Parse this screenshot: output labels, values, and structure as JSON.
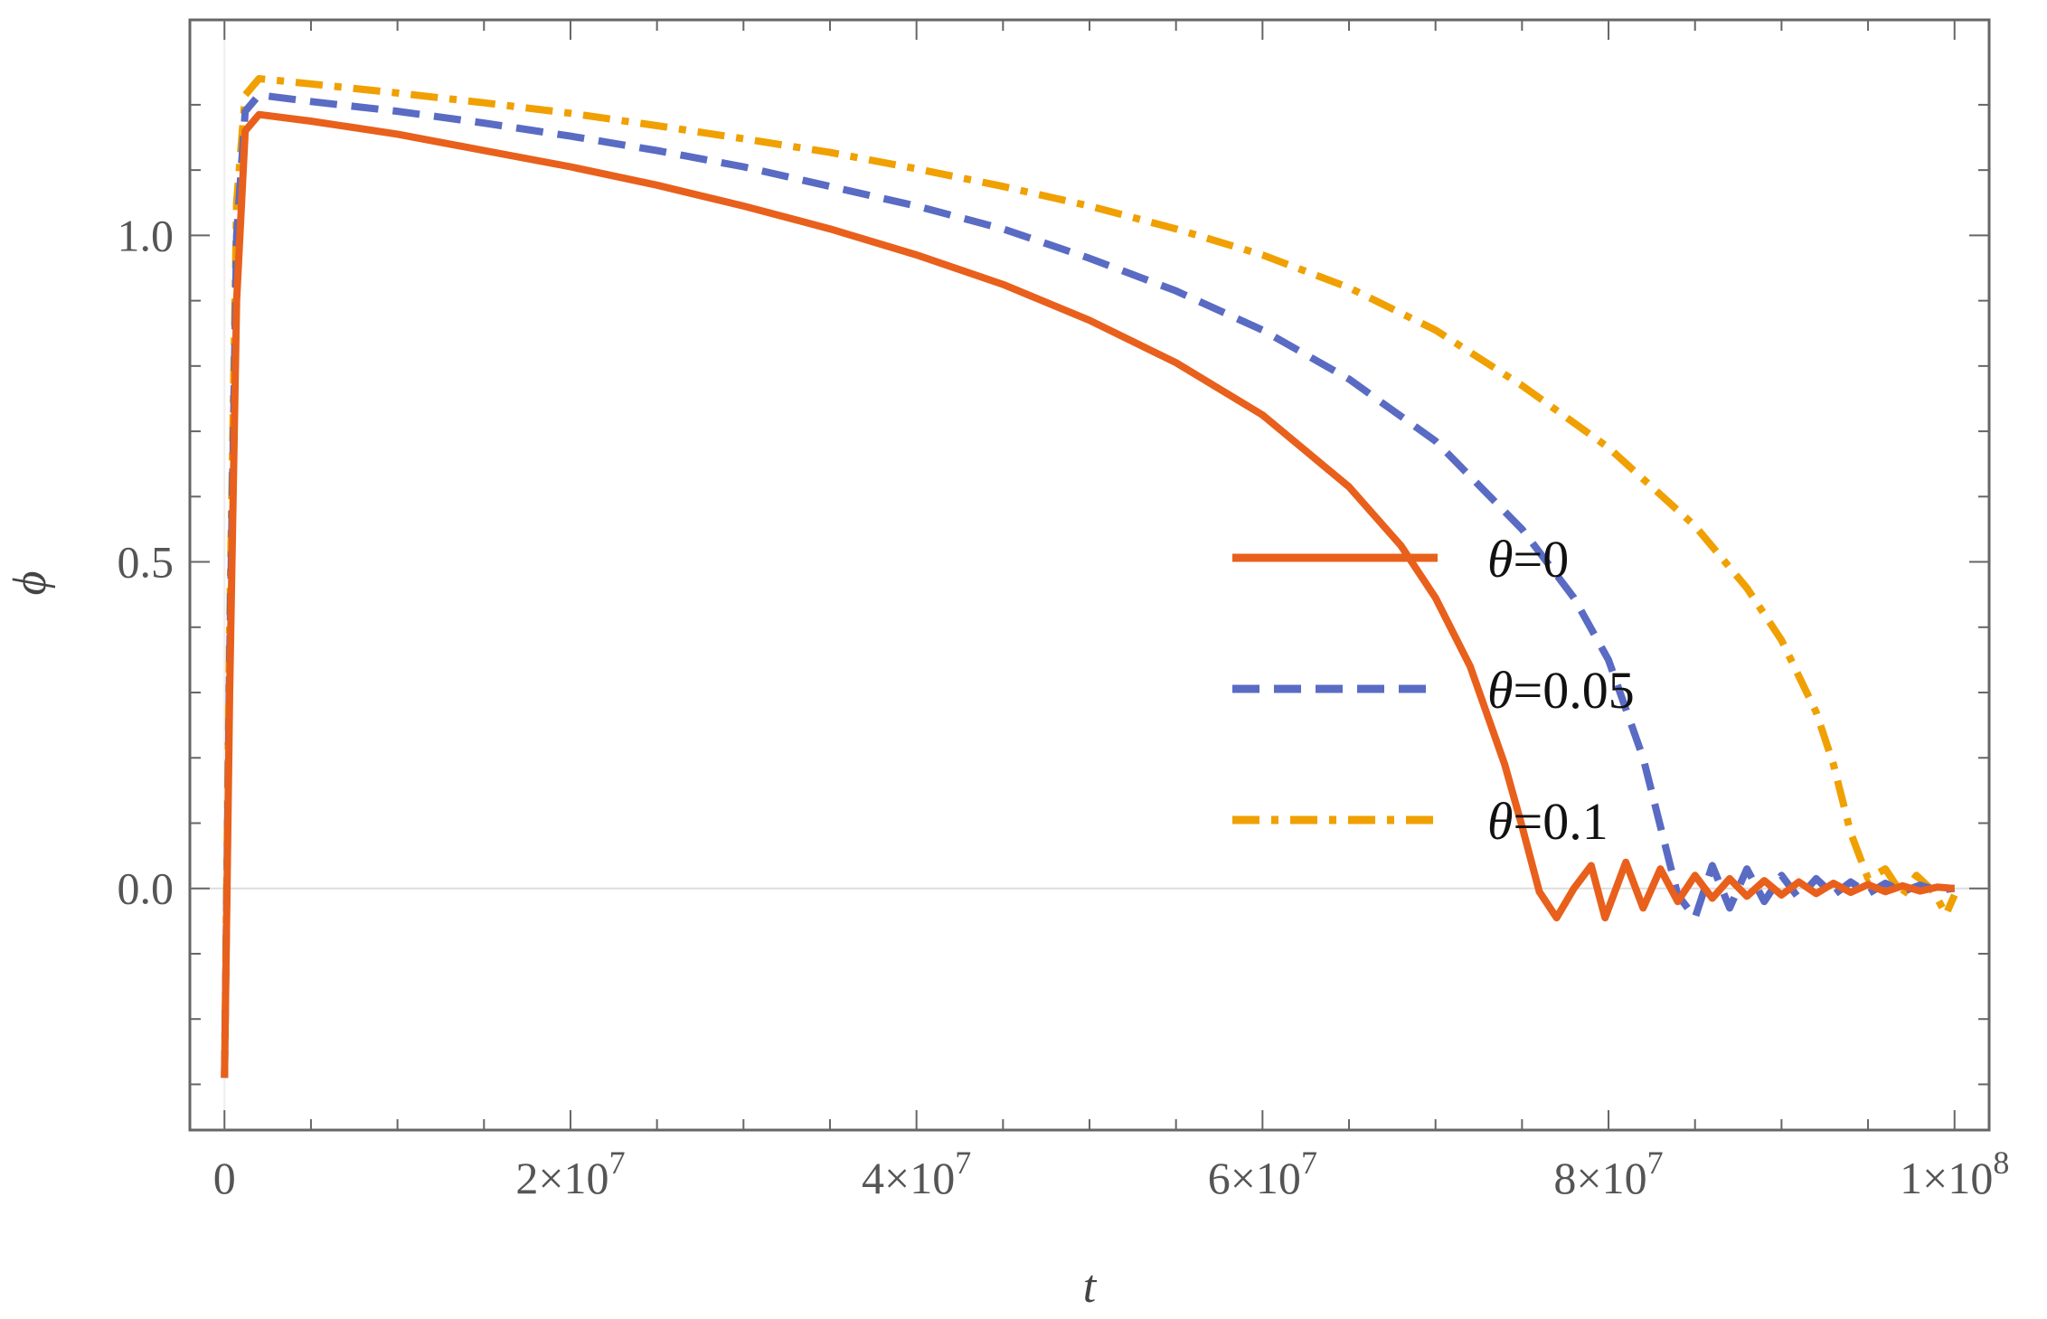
{
  "chart_data": {
    "type": "line",
    "title": "",
    "xlabel": "t",
    "ylabel": "ϕ",
    "xlim": [
      -2000000,
      102000000
    ],
    "ylim": [
      -0.37,
      1.33
    ],
    "grid": false,
    "legend_position": "center-right",
    "x_ticks": [
      {
        "value": 0,
        "label": "0",
        "exp": ""
      },
      {
        "value": 20000000,
        "label": "2×10",
        "exp": "7"
      },
      {
        "value": 40000000,
        "label": "4×10",
        "exp": "7"
      },
      {
        "value": 60000000,
        "label": "6×10",
        "exp": "7"
      },
      {
        "value": 80000000,
        "label": "8×10",
        "exp": "7"
      },
      {
        "value": 100000000,
        "label": "1×10",
        "exp": "8"
      }
    ],
    "y_ticks": [
      {
        "value": 0.0,
        "label": "0.0"
      },
      {
        "value": 0.5,
        "label": "0.5"
      },
      {
        "value": 1.0,
        "label": "1.0"
      }
    ],
    "series": [
      {
        "name": "θ=0",
        "color": "#e8601c",
        "style": "solid",
        "x": [
          0,
          300000,
          700000,
          1200000,
          2000000,
          5000000,
          10000000,
          15000000,
          20000000,
          25000000,
          30000000,
          35000000,
          40000000,
          45000000,
          50000000,
          55000000,
          60000000,
          65000000,
          68000000,
          70000000,
          72000000,
          74000000,
          75000000,
          76000000,
          77000000,
          78000000,
          79000000,
          79800000,
          81000000,
          82000000,
          83000000,
          84000000,
          85000000,
          86000000,
          87000000,
          88000000,
          89000000,
          90000000,
          91000000,
          92000000,
          93000000,
          94000000,
          95000000,
          96000000,
          97000000,
          98000000,
          99000000,
          100000000
        ],
        "y": [
          -0.29,
          0.3,
          0.9,
          1.16,
          1.185,
          1.175,
          1.155,
          1.13,
          1.105,
          1.077,
          1.045,
          1.01,
          0.97,
          0.925,
          0.87,
          0.805,
          0.725,
          0.615,
          0.525,
          0.445,
          0.34,
          0.19,
          0.095,
          -0.005,
          -0.045,
          0.0,
          0.035,
          -0.045,
          0.04,
          -0.03,
          0.03,
          -0.02,
          0.02,
          -0.015,
          0.015,
          -0.012,
          0.012,
          -0.01,
          0.01,
          -0.008,
          0.008,
          -0.006,
          0.006,
          -0.005,
          0.004,
          -0.004,
          0.002,
          0.0
        ]
      },
      {
        "name": "θ=0.05",
        "color": "#5a6bc4",
        "style": "dashed",
        "x": [
          0,
          300000,
          700000,
          1200000,
          2000000,
          5000000,
          10000000,
          15000000,
          20000000,
          25000000,
          30000000,
          35000000,
          40000000,
          45000000,
          50000000,
          55000000,
          60000000,
          65000000,
          70000000,
          75000000,
          78000000,
          80000000,
          82000000,
          84000000,
          85000000,
          86000000,
          87000000,
          88000000,
          89000000,
          90000000,
          91000000,
          92000000,
          93000000,
          94000000,
          95000000,
          96000000,
          97000000,
          98000000,
          99000000,
          100000000
        ],
        "y": [
          -0.29,
          0.35,
          1.0,
          1.19,
          1.215,
          1.205,
          1.19,
          1.172,
          1.152,
          1.13,
          1.105,
          1.075,
          1.045,
          1.01,
          0.965,
          0.915,
          0.855,
          0.78,
          0.685,
          0.55,
          0.445,
          0.35,
          0.2,
          -0.01,
          -0.045,
          0.035,
          -0.03,
          0.03,
          -0.02,
          0.02,
          -0.015,
          0.015,
          -0.01,
          0.01,
          -0.008,
          0.008,
          -0.005,
          0.005,
          -0.003,
          0.0
        ]
      },
      {
        "name": "θ=0.1",
        "color": "#f0a000",
        "style": "dashdot",
        "x": [
          0,
          300000,
          700000,
          1200000,
          2000000,
          5000000,
          10000000,
          15000000,
          20000000,
          25000000,
          30000000,
          35000000,
          40000000,
          45000000,
          50000000,
          55000000,
          60000000,
          65000000,
          70000000,
          75000000,
          80000000,
          85000000,
          88000000,
          90000000,
          92000000,
          93000000,
          94000000,
          95000000,
          96000000,
          97000000,
          97800000,
          98800000,
          99500000,
          100000000
        ],
        "y": [
          -0.29,
          0.4,
          1.05,
          1.215,
          1.24,
          1.232,
          1.218,
          1.203,
          1.187,
          1.168,
          1.148,
          1.127,
          1.102,
          1.075,
          1.045,
          1.01,
          0.97,
          0.92,
          0.855,
          0.77,
          0.675,
          0.555,
          0.46,
          0.38,
          0.27,
          0.19,
          0.085,
          0.015,
          0.03,
          -0.01,
          0.02,
          -0.005,
          -0.04,
          -0.01
        ]
      }
    ]
  }
}
